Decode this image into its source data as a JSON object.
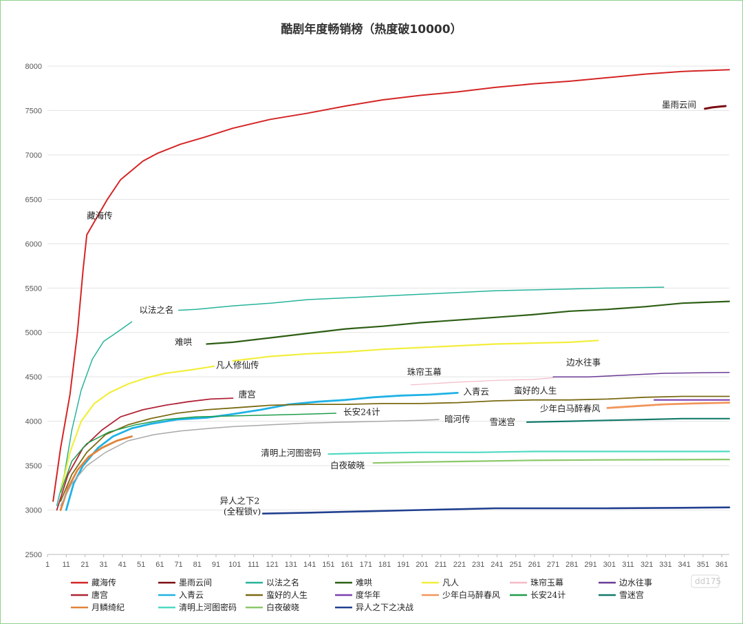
{
  "chart_data": {
    "type": "line",
    "title": "酷剧年度畅销榜（热度破10000）",
    "xlim": [
      1,
      365
    ],
    "ylim": [
      2500,
      8000
    ],
    "x_ticks": [
      1,
      11,
      21,
      31,
      41,
      51,
      61,
      71,
      81,
      91,
      101,
      111,
      121,
      131,
      141,
      151,
      161,
      171,
      181,
      191,
      201,
      211,
      221,
      231,
      241,
      251,
      261,
      271,
      281,
      291,
      301,
      311,
      321,
      331,
      341,
      351,
      361
    ],
    "y_ticks": [
      2500,
      3000,
      3500,
      4000,
      4500,
      5000,
      5500,
      6000,
      6500,
      7000,
      7500,
      8000
    ],
    "grid": "horizontal",
    "legend_position": "bottom",
    "series": [
      {
        "name": "藏海传",
        "color": "#d42424",
        "width": 2,
        "points": [
          [
            4,
            3100
          ],
          [
            8,
            3700
          ],
          [
            13,
            4300
          ],
          [
            17,
            5000
          ],
          [
            20,
            5700
          ],
          [
            22,
            6100
          ],
          [
            33,
            6500
          ],
          [
            40,
            6720
          ],
          [
            52,
            6930
          ],
          [
            60,
            7020
          ],
          [
            72,
            7120
          ],
          [
            85,
            7200
          ],
          [
            100,
            7300
          ],
          [
            120,
            7400
          ],
          [
            140,
            7470
          ],
          [
            160,
            7550
          ],
          [
            180,
            7620
          ],
          [
            200,
            7670
          ],
          [
            220,
            7710
          ],
          [
            240,
            7760
          ],
          [
            260,
            7800
          ],
          [
            280,
            7830
          ],
          [
            300,
            7870
          ],
          [
            320,
            7910
          ],
          [
            340,
            7940
          ],
          [
            365,
            7960
          ]
        ]
      },
      {
        "name": "墨雨云间",
        "color": "#7a0c12",
        "width": 3,
        "points": [
          [
            352,
            7520
          ],
          [
            356,
            7535
          ],
          [
            360,
            7545
          ],
          [
            363,
            7550
          ]
        ]
      },
      {
        "name": "以法之名",
        "color": "#25b39a",
        "width": 1.5,
        "points": [
          [
            6,
            3050
          ],
          [
            10,
            3400
          ],
          [
            14,
            3900
          ],
          [
            19,
            4350
          ],
          [
            25,
            4700
          ],
          [
            31,
            4900
          ],
          [
            38,
            5000
          ],
          [
            46,
            5120
          ]
        ],
        "seg2": [
          [
            71,
            5250
          ],
          [
            80,
            5260
          ],
          [
            100,
            5300
          ],
          [
            120,
            5330
          ],
          [
            140,
            5370
          ],
          [
            160,
            5390
          ],
          [
            180,
            5410
          ],
          [
            200,
            5430
          ],
          [
            220,
            5450
          ],
          [
            240,
            5470
          ],
          [
            260,
            5480
          ],
          [
            280,
            5490
          ],
          [
            300,
            5500
          ],
          [
            330,
            5510
          ]
        ]
      },
      {
        "name": "难哄",
        "color": "#2d5e14",
        "width": 2.2,
        "points": [
          [
            86,
            4870
          ],
          [
            100,
            4890
          ],
          [
            120,
            4940
          ],
          [
            140,
            4990
          ],
          [
            160,
            5040
          ],
          [
            180,
            5070
          ],
          [
            200,
            5110
          ],
          [
            220,
            5140
          ],
          [
            240,
            5170
          ],
          [
            260,
            5200
          ],
          [
            280,
            5240
          ],
          [
            300,
            5260
          ],
          [
            320,
            5290
          ],
          [
            340,
            5330
          ],
          [
            365,
            5350
          ]
        ]
      },
      {
        "name": "凡人",
        "color": "#f2ee3a",
        "width": 2.2,
        "points": [
          [
            8,
            3200
          ],
          [
            13,
            3650
          ],
          [
            19,
            4000
          ],
          [
            26,
            4200
          ],
          [
            34,
            4320
          ],
          [
            44,
            4420
          ],
          [
            54,
            4490
          ],
          [
            64,
            4540
          ],
          [
            78,
            4580
          ],
          [
            90,
            4620
          ]
        ],
        "seg2": [
          [
            100,
            4680
          ],
          [
            120,
            4730
          ],
          [
            140,
            4760
          ],
          [
            160,
            4780
          ],
          [
            180,
            4810
          ],
          [
            200,
            4830
          ],
          [
            220,
            4850
          ],
          [
            240,
            4870
          ],
          [
            260,
            4880
          ],
          [
            280,
            4890
          ],
          [
            295,
            4910
          ]
        ]
      },
      {
        "name": "珠帘玉幕",
        "color": "#f4b9c6",
        "width": 1.2,
        "points": [
          [
            195,
            4410
          ],
          [
            220,
            4440
          ],
          [
            240,
            4460
          ],
          [
            260,
            4470
          ],
          [
            271,
            4490
          ]
        ]
      },
      {
        "name": "边水往事",
        "color": "#6a3a94",
        "width": 1.5,
        "points": [
          [
            271,
            4500
          ],
          [
            290,
            4500
          ],
          [
            310,
            4520
          ],
          [
            330,
            4540
          ],
          [
            365,
            4550
          ]
        ]
      },
      {
        "name": "唐宫",
        "color": "#b02236",
        "width": 1.8,
        "points": [
          [
            6,
            3000
          ],
          [
            12,
            3400
          ],
          [
            20,
            3700
          ],
          [
            30,
            3900
          ],
          [
            40,
            4050
          ],
          [
            52,
            4130
          ],
          [
            64,
            4180
          ],
          [
            76,
            4220
          ],
          [
            88,
            4250
          ],
          [
            100,
            4260
          ]
        ]
      },
      {
        "name": "入青云",
        "color": "#1fb2e5",
        "width": 2.8,
        "points": [
          [
            11,
            3000
          ],
          [
            15,
            3300
          ],
          [
            20,
            3500
          ],
          [
            28,
            3700
          ],
          [
            36,
            3830
          ],
          [
            46,
            3920
          ],
          [
            56,
            3970
          ],
          [
            70,
            4020
          ],
          [
            86,
            4040
          ],
          [
            100,
            4080
          ],
          [
            115,
            4130
          ],
          [
            130,
            4190
          ],
          [
            145,
            4220
          ],
          [
            160,
            4240
          ],
          [
            175,
            4270
          ],
          [
            190,
            4290
          ],
          [
            205,
            4300
          ],
          [
            220,
            4320
          ]
        ]
      },
      {
        "name": "蛮好的人生",
        "color": "#7a6a12",
        "width": 1.8,
        "points": [
          [
            8,
            3100
          ],
          [
            14,
            3400
          ],
          [
            22,
            3650
          ],
          [
            32,
            3850
          ],
          [
            44,
            3960
          ],
          [
            56,
            4030
          ],
          [
            70,
            4090
          ],
          [
            86,
            4130
          ],
          [
            100,
            4150
          ],
          [
            120,
            4180
          ],
          [
            140,
            4190
          ],
          [
            160,
            4190
          ],
          [
            180,
            4200
          ],
          [
            200,
            4200
          ],
          [
            220,
            4210
          ],
          [
            240,
            4230
          ],
          [
            260,
            4240
          ],
          [
            280,
            4240
          ],
          [
            300,
            4250
          ],
          [
            320,
            4270
          ],
          [
            340,
            4280
          ],
          [
            365,
            4280
          ]
        ]
      },
      {
        "name": "度华年",
        "color": "#7b3fb0",
        "width": 2.2,
        "points": [
          [
            325,
            4240
          ],
          [
            365,
            4240
          ]
        ]
      },
      {
        "name": "少年白马醉春风",
        "color": "#f2955a",
        "width": 2.8,
        "points": [
          [
            300,
            4150
          ],
          [
            315,
            4170
          ],
          [
            330,
            4190
          ],
          [
            345,
            4200
          ],
          [
            365,
            4210
          ]
        ]
      },
      {
        "name": "长安24计",
        "color": "#1e9c4a",
        "width": 1.5,
        "points": [
          [
            8,
            3200
          ],
          [
            14,
            3550
          ],
          [
            22,
            3750
          ],
          [
            34,
            3880
          ],
          [
            48,
            3960
          ],
          [
            64,
            4020
          ],
          [
            80,
            4050
          ],
          [
            100,
            4060
          ],
          [
            120,
            4070
          ],
          [
            140,
            4080
          ],
          [
            155,
            4090
          ]
        ]
      },
      {
        "name": "雪迷宫",
        "color": "#137a6a",
        "width": 2.2,
        "points": [
          [
            257,
            3990
          ],
          [
            280,
            4000
          ],
          [
            300,
            4010
          ],
          [
            320,
            4020
          ],
          [
            340,
            4030
          ],
          [
            365,
            4030
          ]
        ]
      },
      {
        "name": "月鳞绮纪",
        "color": "#e0843a",
        "width": 2.8,
        "points": [
          [
            8,
            3000
          ],
          [
            12,
            3250
          ],
          [
            17,
            3450
          ],
          [
            23,
            3600
          ],
          [
            30,
            3700
          ],
          [
            38,
            3780
          ],
          [
            46,
            3830
          ]
        ]
      },
      {
        "name": "清明上河图密码",
        "color": "#4fd9c2",
        "width": 2.2,
        "points": [
          [
            151,
            3630
          ],
          [
            170,
            3640
          ],
          [
            200,
            3650
          ],
          [
            230,
            3650
          ],
          [
            260,
            3660
          ],
          [
            300,
            3660
          ],
          [
            330,
            3660
          ],
          [
            365,
            3660
          ]
        ]
      },
      {
        "name": "白夜破晓",
        "color": "#8cc86a",
        "width": 2.2,
        "points": [
          [
            175,
            3530
          ],
          [
            200,
            3540
          ],
          [
            230,
            3550
          ],
          [
            260,
            3560
          ],
          [
            300,
            3565
          ],
          [
            365,
            3570
          ]
        ]
      },
      {
        "name": "异人之下之决战",
        "color": "#203f8f",
        "width": 2.6,
        "points": [
          [
            116,
            2960
          ],
          [
            140,
            2970
          ],
          [
            160,
            2980
          ],
          [
            180,
            2990
          ],
          [
            200,
            3000
          ],
          [
            220,
            3010
          ],
          [
            240,
            3020
          ],
          [
            260,
            3020
          ],
          [
            300,
            3020
          ],
          [
            340,
            3025
          ],
          [
            365,
            3030
          ]
        ]
      },
      {
        "name": "暗河传",
        "color": "#a8a8a8",
        "width": 1.5,
        "points": [
          [
            8,
            3050
          ],
          [
            14,
            3300
          ],
          [
            22,
            3500
          ],
          [
            32,
            3650
          ],
          [
            44,
            3780
          ],
          [
            58,
            3850
          ],
          [
            72,
            3890
          ],
          [
            88,
            3920
          ],
          [
            100,
            3940
          ],
          [
            120,
            3960
          ],
          [
            140,
            3980
          ],
          [
            160,
            3990
          ],
          [
            180,
            4000
          ],
          [
            200,
            4010
          ],
          [
            210,
            4020
          ]
        ]
      }
    ],
    "annotations": [
      {
        "text": "藏海传",
        "x": 22,
        "y": 6280
      },
      {
        "text": "墨雨云间",
        "x": 329,
        "y": 7530
      },
      {
        "text": "以法之名",
        "x": 50,
        "y": 5220
      },
      {
        "text": "难哄",
        "x": 69,
        "y": 4860
      },
      {
        "text": "凡人修仙传",
        "x": 91,
        "y": 4600
      },
      {
        "text": "唐宫",
        "x": 103,
        "y": 4270
      },
      {
        "text": "入青云",
        "x": 223,
        "y": 4300
      },
      {
        "text": "珠帘玉幕",
        "x": 193,
        "y": 4520
      },
      {
        "text": "边水往事",
        "x": 278,
        "y": 4630
      },
      {
        "text": "蛮好的人生",
        "x": 250,
        "y": 4310
      },
      {
        "text": "少年白马醉春风",
        "x": 264,
        "y": 4110
      },
      {
        "text": "长安24计",
        "x": 159,
        "y": 4070
      },
      {
        "text": "暗河传",
        "x": 213,
        "y": 3990
      },
      {
        "text": "雪迷宫",
        "x": 237,
        "y": 3960
      },
      {
        "text": "清明上河图密码",
        "x": 115,
        "y": 3610
      },
      {
        "text": "白夜破晓",
        "x": 152,
        "y": 3470
      },
      {
        "text": "异人之下2",
        "x": 93,
        "y": 3070
      },
      {
        "text": "(全程锁v)",
        "x": 95,
        "y": 2950
      }
    ],
    "legend": [
      "藏海传",
      "墨雨云间",
      "以法之名",
      "难哄",
      "凡人",
      "珠帘玉幕",
      "边水往事",
      "唐宫",
      "入青云",
      "蛮好的人生",
      "度华年",
      "少年白马醉春风",
      "长安24计",
      "雪迷宫",
      "月鳞绮纪",
      "清明上河图密码",
      "白夜破晓",
      "异人之下之决战"
    ]
  },
  "watermark": "dd175"
}
